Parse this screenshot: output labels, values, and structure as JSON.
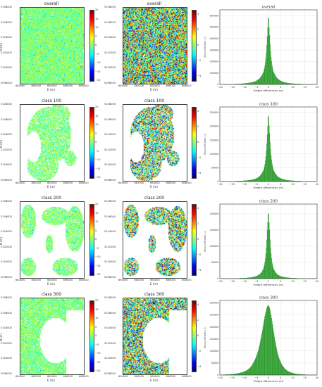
{
  "figure": {
    "map_xlabel": "E (m)",
    "map_ylabel": "N (m)",
    "map_xticks": [
      "660000",
      "662000",
      "664000",
      "666000",
      "668000"
    ],
    "map_yticks": [
      "5108000",
      "5106000",
      "5104000",
      "5102000",
      "5100000",
      "5098000"
    ],
    "cbar_left_ticks": [
      "20",
      "15",
      "10",
      "5",
      "0",
      "−5",
      "−10",
      "−15",
      "−20"
    ],
    "cbar_mid_ticks": [
      "4",
      "2",
      "0",
      "−2",
      "−4"
    ],
    "hist_xlabel": "Height differences (m)",
    "hist_ylabel": "Occurrences (-)",
    "hist_xticks": [
      "−20",
      "−15",
      "−10",
      "−5",
      "0",
      "5",
      "10",
      "15",
      "20"
    ]
  },
  "rows": [
    {
      "title": "overall",
      "mid_title": "overall",
      "hist_title": "overall",
      "hist_yticks": [
        "0",
        "100000",
        "200000",
        "300000",
        "400000",
        "500000",
        "600000"
      ],
      "hist_ymax": 650000,
      "coverage": "full"
    },
    {
      "title": "class 100",
      "mid_title": "class 100",
      "hist_title": "class 100",
      "hist_yticks": [
        "0",
        "50000",
        "100000",
        "150000",
        "200000",
        "250000"
      ],
      "hist_ymax": 270000,
      "coverage": "urban"
    },
    {
      "title": "class 200",
      "mid_title": "class 200",
      "hist_title": "class 200",
      "hist_yticks": [
        "0",
        "50000",
        "100000",
        "150000",
        "200000"
      ],
      "hist_ymax": 230000,
      "coverage": "patches"
    },
    {
      "title": "class 300",
      "mid_title": "class 300",
      "hist_title": "class 300",
      "hist_yticks": [
        "0",
        "50000",
        "100000",
        "150000",
        "200000",
        "250000",
        "300000"
      ],
      "hist_ymax": 310000,
      "coverage": "forest"
    }
  ],
  "chart_data": [
    {
      "type": "bar",
      "title": "overall",
      "xlabel": "Height differences (m)",
      "ylabel": "Occurrences (-)",
      "xlim": [
        -20,
        20
      ],
      "ylim": [
        0,
        650000
      ],
      "grid": true,
      "bar_color": "#2ca02c",
      "x": [
        -20,
        -18,
        -16,
        -14,
        -12,
        -10,
        -8,
        -6,
        -4,
        -3,
        -2,
        -1.5,
        -1,
        -0.5,
        0,
        0.5,
        1,
        1.5,
        2,
        3,
        4,
        6,
        8,
        10,
        12,
        14,
        16,
        18,
        20
      ],
      "values": [
        1000,
        1500,
        2000,
        3000,
        5000,
        8000,
        13000,
        22000,
        45000,
        70000,
        110000,
        160000,
        250000,
        420000,
        620000,
        430000,
        260000,
        170000,
        115000,
        72000,
        46000,
        22000,
        12000,
        7000,
        4500,
        3000,
        2000,
        1500,
        1000
      ]
    },
    {
      "type": "bar",
      "title": "class 100",
      "xlabel": "Height differences (m)",
      "ylabel": "Occurrences (-)",
      "xlim": [
        -20,
        20
      ],
      "ylim": [
        0,
        270000
      ],
      "grid": true,
      "bar_color": "#2ca02c",
      "x": [
        -20,
        -18,
        -16,
        -14,
        -12,
        -10,
        -8,
        -6,
        -4,
        -3,
        -2,
        -1.5,
        -1,
        -0.5,
        0,
        0.5,
        1,
        1.5,
        2,
        3,
        4,
        6,
        8,
        10,
        12,
        14,
        16,
        18,
        20
      ],
      "values": [
        400,
        600,
        800,
        1200,
        1800,
        2800,
        4500,
        8000,
        16000,
        26000,
        42000,
        62000,
        100000,
        170000,
        255000,
        175000,
        105000,
        66000,
        44000,
        27000,
        16500,
        8200,
        4500,
        2800,
        1800,
        1200,
        800,
        600,
        400
      ]
    },
    {
      "type": "bar",
      "title": "class 200",
      "xlabel": "Height differences (m)",
      "ylabel": "Occurrences (-)",
      "xlim": [
        -20,
        20
      ],
      "ylim": [
        0,
        230000
      ],
      "grid": true,
      "bar_color": "#2ca02c",
      "x": [
        -20,
        -18,
        -16,
        -14,
        -12,
        -10,
        -8,
        -6,
        -4,
        -3,
        -2,
        -1.5,
        -1,
        -0.5,
        0,
        0.5,
        1,
        1.5,
        2,
        3,
        4,
        6,
        8,
        10,
        12,
        14,
        16,
        18,
        20
      ],
      "values": [
        200,
        300,
        500,
        700,
        1100,
        1700,
        2800,
        5200,
        11000,
        18000,
        32000,
        50000,
        85000,
        150000,
        215000,
        150000,
        86000,
        51000,
        33000,
        18500,
        11000,
        5200,
        2800,
        1700,
        1100,
        700,
        500,
        300,
        200
      ]
    },
    {
      "type": "bar",
      "title": "class 300",
      "xlabel": "Height differences (m)",
      "ylabel": "Occurrences (-)",
      "xlim": [
        -20,
        20
      ],
      "ylim": [
        0,
        310000
      ],
      "grid": true,
      "bar_color": "#2ca02c",
      "x": [
        -20,
        -18,
        -16,
        -14,
        -12,
        -10,
        -8,
        -6,
        -4,
        -3,
        -2,
        -1.5,
        -1,
        -0.5,
        0,
        0.5,
        1,
        1.5,
        2,
        3,
        4,
        6,
        8,
        10,
        12,
        14,
        16,
        18,
        20
      ],
      "values": [
        800,
        1500,
        2500,
        4500,
        8000,
        14000,
        26000,
        55000,
        110000,
        160000,
        215000,
        245000,
        268000,
        285000,
        290000,
        280000,
        255000,
        225000,
        190000,
        130000,
        82000,
        36000,
        16000,
        8000,
        4000,
        2200,
        1300,
        900,
        600
      ]
    }
  ],
  "colors": {
    "bar": "#2ca02c",
    "bar_edge": "#1f7a1f",
    "grid": "#dddddd"
  }
}
